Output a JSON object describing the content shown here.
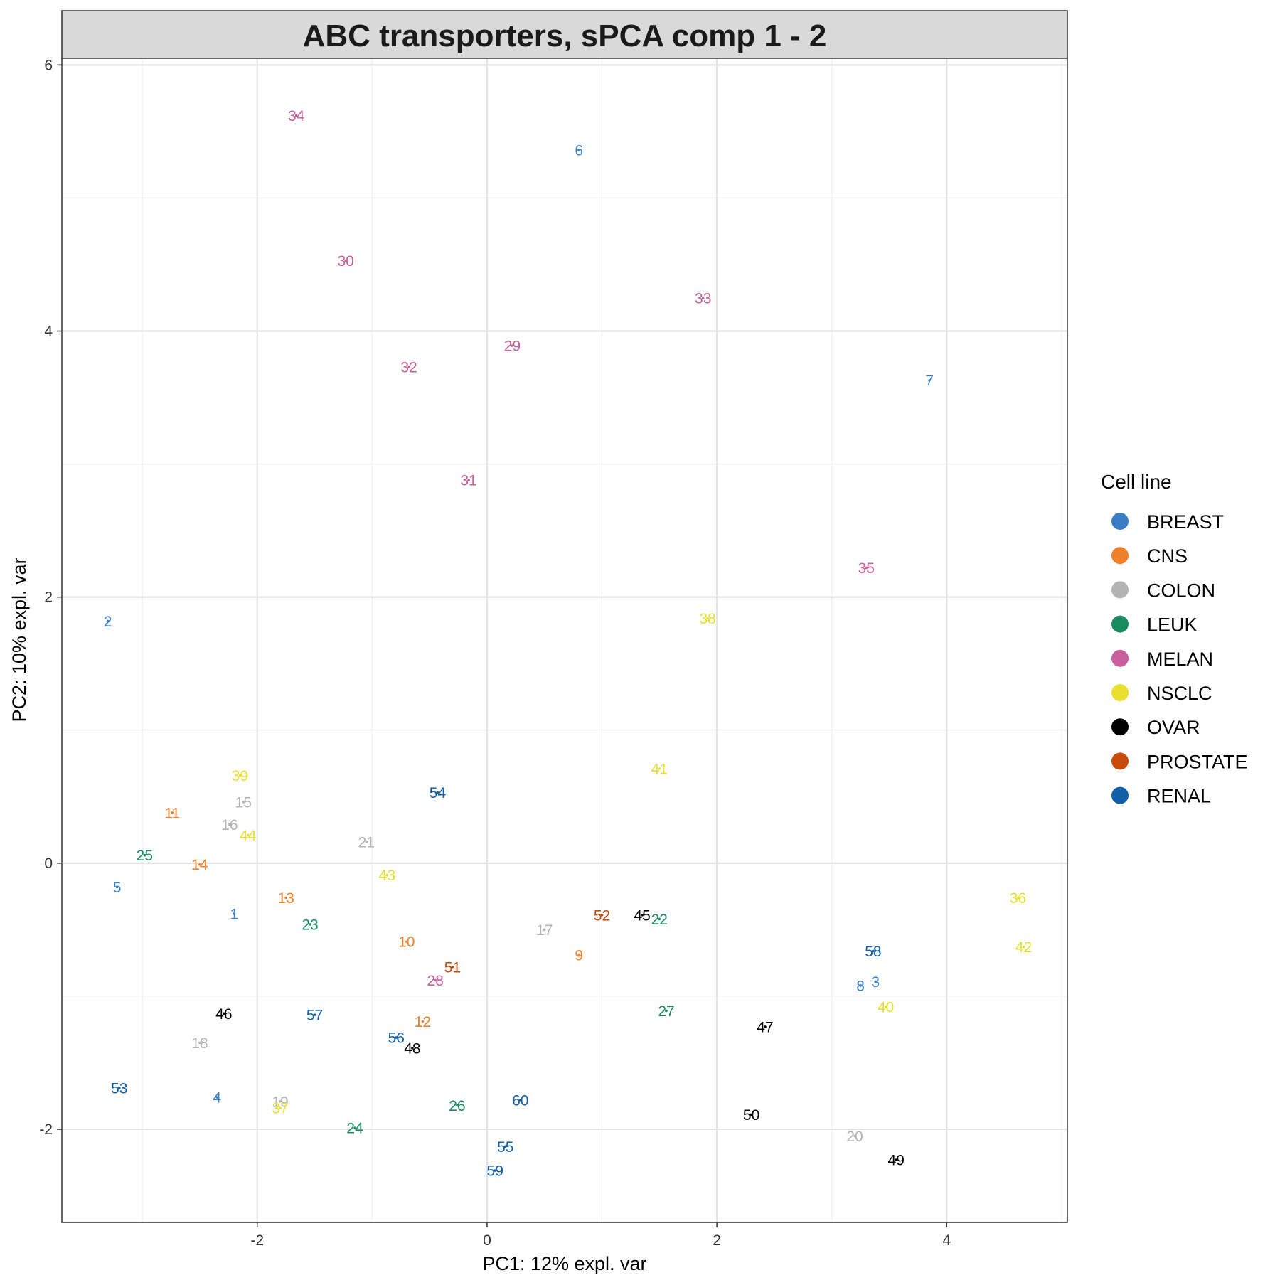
{
  "chart_data": {
    "type": "scatter",
    "title": "ABC transporters, sPCA comp 1 - 2",
    "xlabel": "PC1: 12% expl. var",
    "ylabel": "PC2: 10% expl. var",
    "xlim": [
      -3.7,
      5.05
    ],
    "ylim": [
      -2.7,
      6.05
    ],
    "x_ticks": [
      -2,
      0,
      2,
      4
    ],
    "x_tick_labels": [
      "-2",
      "0",
      "2",
      "4"
    ],
    "y_ticks": [
      -2,
      0,
      2,
      4,
      6
    ],
    "y_tick_labels": [
      "-2",
      "0",
      "2",
      "4",
      "6"
    ],
    "grid": true,
    "legend": {
      "title": "Cell line",
      "position": "right",
      "items": [
        {
          "label": "BREAST",
          "color": "#3a7dc5"
        },
        {
          "label": "CNS",
          "color": "#f0802a"
        },
        {
          "label": "COLON",
          "color": "#b3b3b3"
        },
        {
          "label": "LEUK",
          "color": "#1b8c60"
        },
        {
          "label": "MELAN",
          "color": "#c65f9b"
        },
        {
          "label": "NSCLC",
          "color": "#e9df2f"
        },
        {
          "label": "OVAR",
          "color": "#000000"
        },
        {
          "label": "PROSTATE",
          "color": "#c8490a"
        },
        {
          "label": "RENAL",
          "color": "#105fa8"
        }
      ]
    },
    "points": [
      {
        "label": "1",
        "group": "BREAST",
        "x": -2.2,
        "y": -0.38
      },
      {
        "label": "2",
        "group": "BREAST",
        "x": -3.3,
        "y": 1.82
      },
      {
        "label": "3",
        "group": "BREAST",
        "x": 3.38,
        "y": -0.89
      },
      {
        "label": "4",
        "group": "BREAST",
        "x": -2.35,
        "y": -1.76
      },
      {
        "label": "5",
        "group": "BREAST",
        "x": -3.22,
        "y": -0.18
      },
      {
        "label": "6",
        "group": "BREAST",
        "x": 0.8,
        "y": 5.36
      },
      {
        "label": "7",
        "group": "BREAST",
        "x": 3.85,
        "y": 3.63
      },
      {
        "label": "8",
        "group": "BREAST",
        "x": 3.25,
        "y": -0.92
      },
      {
        "label": "9",
        "group": "CNS",
        "x": 0.8,
        "y": -0.69
      },
      {
        "label": "10",
        "group": "CNS",
        "x": -0.7,
        "y": -0.59
      },
      {
        "label": "11",
        "group": "CNS",
        "x": -2.74,
        "y": 0.38
      },
      {
        "label": "12",
        "group": "CNS",
        "x": -0.56,
        "y": -1.19
      },
      {
        "label": "13",
        "group": "CNS",
        "x": -1.75,
        "y": -0.26
      },
      {
        "label": "14",
        "group": "CNS",
        "x": -2.5,
        "y": -0.01
      },
      {
        "label": "15",
        "group": "COLON",
        "x": -2.12,
        "y": 0.46
      },
      {
        "label": "16",
        "group": "COLON",
        "x": -2.24,
        "y": 0.29
      },
      {
        "label": "17",
        "group": "COLON",
        "x": 0.5,
        "y": -0.5
      },
      {
        "label": "18",
        "group": "COLON",
        "x": -2.5,
        "y": -1.35
      },
      {
        "label": "19",
        "group": "COLON",
        "x": -1.8,
        "y": -1.79
      },
      {
        "label": "20",
        "group": "COLON",
        "x": 3.2,
        "y": -2.05
      },
      {
        "label": "21",
        "group": "COLON",
        "x": -1.05,
        "y": 0.16
      },
      {
        "label": "22",
        "group": "LEUK",
        "x": 1.5,
        "y": -0.42
      },
      {
        "label": "23",
        "group": "LEUK",
        "x": -1.54,
        "y": -0.46
      },
      {
        "label": "24",
        "group": "LEUK",
        "x": -1.15,
        "y": -1.99
      },
      {
        "label": "25",
        "group": "LEUK",
        "x": -2.98,
        "y": 0.06
      },
      {
        "label": "26",
        "group": "LEUK",
        "x": -0.26,
        "y": -1.82
      },
      {
        "label": "27",
        "group": "LEUK",
        "x": 1.56,
        "y": -1.11
      },
      {
        "label": "28",
        "group": "MELAN",
        "x": -0.45,
        "y": -0.88
      },
      {
        "label": "29",
        "group": "MELAN",
        "x": 0.22,
        "y": 3.89
      },
      {
        "label": "30",
        "group": "MELAN",
        "x": -1.23,
        "y": 4.53
      },
      {
        "label": "31",
        "group": "MELAN",
        "x": -0.16,
        "y": 2.88
      },
      {
        "label": "32",
        "group": "MELAN",
        "x": -0.68,
        "y": 3.73
      },
      {
        "label": "33",
        "group": "MELAN",
        "x": 1.88,
        "y": 4.25
      },
      {
        "label": "34",
        "group": "MELAN",
        "x": -1.66,
        "y": 5.62
      },
      {
        "label": "35",
        "group": "MELAN",
        "x": 3.3,
        "y": 2.22
      },
      {
        "label": "36",
        "group": "NSCLC",
        "x": 4.62,
        "y": -0.26
      },
      {
        "label": "37",
        "group": "NSCLC",
        "x": -1.8,
        "y": -1.84
      },
      {
        "label": "38",
        "group": "NSCLC",
        "x": 1.92,
        "y": 1.84
      },
      {
        "label": "39",
        "group": "NSCLC",
        "x": -2.15,
        "y": 0.66
      },
      {
        "label": "40",
        "group": "NSCLC",
        "x": 3.47,
        "y": -1.08
      },
      {
        "label": "41",
        "group": "NSCLC",
        "x": 1.5,
        "y": 0.71
      },
      {
        "label": "42",
        "group": "NSCLC",
        "x": 4.67,
        "y": -0.63
      },
      {
        "label": "43",
        "group": "NSCLC",
        "x": -0.87,
        "y": -0.09
      },
      {
        "label": "44",
        "group": "NSCLC",
        "x": -2.08,
        "y": 0.21
      },
      {
        "label": "45",
        "group": "OVAR",
        "x": 1.35,
        "y": -0.39
      },
      {
        "label": "46",
        "group": "OVAR",
        "x": -2.29,
        "y": -1.13
      },
      {
        "label": "47",
        "group": "OVAR",
        "x": 2.42,
        "y": -1.23
      },
      {
        "label": "48",
        "group": "OVAR",
        "x": -0.65,
        "y": -1.39
      },
      {
        "label": "49",
        "group": "OVAR",
        "x": 3.56,
        "y": -2.23
      },
      {
        "label": "50",
        "group": "OVAR",
        "x": 2.3,
        "y": -1.89
      },
      {
        "label": "51",
        "group": "PROSTATE",
        "x": -0.3,
        "y": -0.78
      },
      {
        "label": "52",
        "group": "PROSTATE",
        "x": 1.0,
        "y": -0.39
      },
      {
        "label": "53",
        "group": "RENAL",
        "x": -3.2,
        "y": -1.69
      },
      {
        "label": "54",
        "group": "RENAL",
        "x": -0.43,
        "y": 0.53
      },
      {
        "label": "55",
        "group": "RENAL",
        "x": 0.16,
        "y": -2.13
      },
      {
        "label": "56",
        "group": "RENAL",
        "x": -0.79,
        "y": -1.31
      },
      {
        "label": "57",
        "group": "RENAL",
        "x": -1.5,
        "y": -1.14
      },
      {
        "label": "58",
        "group": "RENAL",
        "x": 3.36,
        "y": -0.66
      },
      {
        "label": "59",
        "group": "RENAL",
        "x": 0.07,
        "y": -2.31
      },
      {
        "label": "60",
        "group": "RENAL",
        "x": 0.29,
        "y": -1.78
      }
    ]
  }
}
